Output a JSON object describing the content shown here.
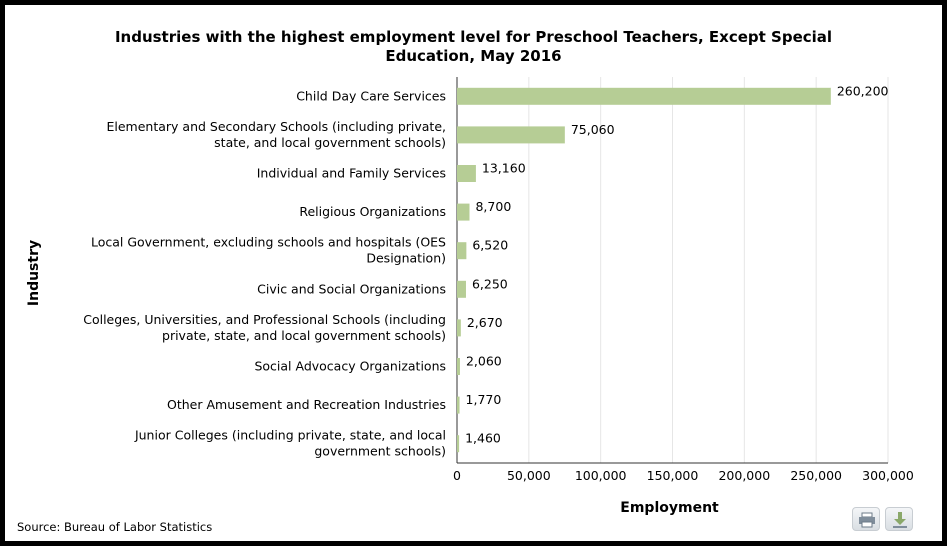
{
  "chart_data": {
    "type": "bar",
    "orientation": "horizontal",
    "title_lines": [
      "Industries with the highest employment level for Preschool Teachers, Except Special",
      "Education, May 2016"
    ],
    "xlabel": "Employment",
    "ylabel": "Industry",
    "xlim": [
      0,
      300000
    ],
    "xticks": [
      "0",
      "50,000",
      "100,000",
      "150,000",
      "200,000",
      "250,000",
      "300,000"
    ],
    "categories": [
      [
        "Child Day Care Services"
      ],
      [
        "Elementary and Secondary Schools (including private,",
        "state, and local government schools)"
      ],
      [
        "Individual and Family Services"
      ],
      [
        "Religious Organizations"
      ],
      [
        "Local Government, excluding schools and hospitals (OES",
        "Designation)"
      ],
      [
        "Civic and Social Organizations"
      ],
      [
        "Colleges, Universities, and Professional Schools (including",
        "private, state, and local government schools)"
      ],
      [
        "Social Advocacy Organizations"
      ],
      [
        "Other Amusement and Recreation Industries"
      ],
      [
        "Junior Colleges (including private, state, and local",
        "government schools)"
      ]
    ],
    "values": [
      260200,
      75060,
      13160,
      8700,
      6520,
      6250,
      2670,
      2060,
      1770,
      1460
    ],
    "value_labels": [
      "260,200",
      "75,060",
      "13,160",
      "8,700",
      "6,520",
      "6,250",
      "2,670",
      "2,060",
      "1,770",
      "1,460"
    ],
    "bar_color": "#b6cd95",
    "grid": true,
    "source": "Source: Bureau of Labor Statistics"
  },
  "buttons": {
    "print_icon": "print-icon",
    "download_icon": "download-icon"
  }
}
